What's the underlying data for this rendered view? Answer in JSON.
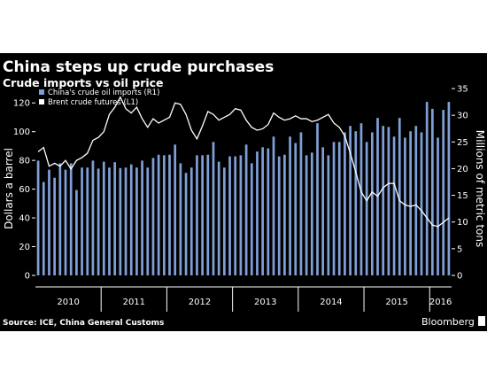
{
  "chart_data": {
    "type": "bar",
    "title": "China steps up crude purchases",
    "subtitle": "Crude imports vs oil price",
    "ylabel_left": "Dollars a barrel",
    "ylabel_right": "Millions of metric tons",
    "left_axis": {
      "ylim": [
        0,
        130
      ],
      "ticks": [
        0,
        20,
        40,
        60,
        80,
        100,
        120
      ]
    },
    "right_axis": {
      "ylim": [
        0,
        35
      ],
      "ticks": [
        0,
        5,
        10,
        15,
        20,
        25,
        30,
        35
      ]
    },
    "x_labels": [
      "2010",
      "2011",
      "2012",
      "2013",
      "2014",
      "2015",
      "2016"
    ],
    "x_range": [
      "2010-01",
      "2016-04"
    ],
    "grid": false,
    "legend_position": "top-left",
    "series": [
      {
        "name": "China's crude oil imports (R1)",
        "type": "bar",
        "axis": "right",
        "color": "#7f9fd6",
        "x": [
          "2010-01",
          "2010-02",
          "2010-03",
          "2010-04",
          "2010-05",
          "2010-06",
          "2010-07",
          "2010-08",
          "2010-09",
          "2010-10",
          "2010-11",
          "2010-12",
          "2011-01",
          "2011-02",
          "2011-03",
          "2011-04",
          "2011-05",
          "2011-06",
          "2011-07",
          "2011-08",
          "2011-09",
          "2011-10",
          "2011-11",
          "2011-12",
          "2012-01",
          "2012-02",
          "2012-03",
          "2012-04",
          "2012-05",
          "2012-06",
          "2012-07",
          "2012-08",
          "2012-09",
          "2012-10",
          "2012-11",
          "2012-12",
          "2013-01",
          "2013-02",
          "2013-03",
          "2013-04",
          "2013-05",
          "2013-06",
          "2013-07",
          "2013-08",
          "2013-09",
          "2013-10",
          "2013-11",
          "2013-12",
          "2014-01",
          "2014-02",
          "2014-03",
          "2014-04",
          "2014-05",
          "2014-06",
          "2014-07",
          "2014-08",
          "2014-09",
          "2014-10",
          "2014-11",
          "2014-12",
          "2015-01",
          "2015-02",
          "2015-03",
          "2015-04",
          "2015-05",
          "2015-06",
          "2015-07",
          "2015-08",
          "2015-09",
          "2015-10",
          "2015-11",
          "2015-12",
          "2016-01",
          "2016-02",
          "2016-03",
          "2016-04"
        ],
        "values": [
          21.5,
          17.5,
          19.8,
          18.3,
          21.0,
          19.8,
          21.0,
          16.0,
          20.2,
          20.2,
          21.5,
          20.0,
          21.3,
          20.2,
          21.2,
          20.1,
          20.2,
          20.8,
          20.2,
          21.5,
          20.2,
          22.0,
          22.6,
          22.5,
          22.6,
          24.5,
          21.0,
          19.2,
          20.2,
          22.5,
          22.5,
          22.6,
          25.0,
          21.3,
          20.2,
          22.3,
          22.3,
          22.5,
          24.5,
          21.0,
          23.2,
          24.0,
          23.8,
          26.0,
          22.3,
          22.6,
          26.0,
          24.8,
          26.8,
          22.5,
          23.0,
          28.5,
          24.0,
          22.5,
          25.0,
          25.0,
          26.8,
          28.0,
          27.0,
          28.5,
          25.0,
          26.8,
          29.5,
          28.0,
          27.8,
          26.0,
          29.5,
          25.8,
          27.0,
          28.0,
          26.8,
          32.5,
          31.2,
          25.8,
          31.0,
          32.5
        ]
      },
      {
        "name": "Brent crude futures (L1)",
        "type": "line",
        "axis": "left",
        "color": "#ffffff",
        "x": [
          "2010-01",
          "2010-02",
          "2010-03",
          "2010-04",
          "2010-05",
          "2010-06",
          "2010-07",
          "2010-08",
          "2010-09",
          "2010-10",
          "2010-11",
          "2010-12",
          "2011-01",
          "2011-02",
          "2011-03",
          "2011-04",
          "2011-05",
          "2011-06",
          "2011-07",
          "2011-08",
          "2011-09",
          "2011-10",
          "2011-11",
          "2011-12",
          "2012-01",
          "2012-02",
          "2012-03",
          "2012-04",
          "2012-05",
          "2012-06",
          "2012-07",
          "2012-08",
          "2012-09",
          "2012-10",
          "2012-11",
          "2012-12",
          "2013-01",
          "2013-02",
          "2013-03",
          "2013-04",
          "2013-05",
          "2013-06",
          "2013-07",
          "2013-08",
          "2013-09",
          "2013-10",
          "2013-11",
          "2013-12",
          "2014-01",
          "2014-02",
          "2014-03",
          "2014-04",
          "2014-05",
          "2014-06",
          "2014-07",
          "2014-08",
          "2014-09",
          "2014-10",
          "2014-11",
          "2014-12",
          "2015-01",
          "2015-02",
          "2015-03",
          "2015-04",
          "2015-05",
          "2015-06",
          "2015-07",
          "2015-08",
          "2015-09",
          "2015-10",
          "2015-11",
          "2015-12",
          "2016-01",
          "2016-02",
          "2016-03",
          "2016-04"
        ],
        "values": [
          86,
          89,
          76,
          78,
          76,
          80,
          74,
          80,
          82,
          85,
          94,
          96,
          100,
          112,
          117,
          124,
          116,
          113,
          117,
          109,
          103,
          109,
          106,
          108,
          110,
          120,
          119,
          112,
          101,
          95,
          104,
          114,
          112,
          108,
          110,
          112,
          116,
          115,
          108,
          103,
          101,
          102,
          105,
          113,
          110,
          108,
          109,
          111,
          109,
          109,
          107,
          108,
          110,
          112,
          106,
          103,
          97,
          85,
          72,
          58,
          52,
          58,
          55,
          61,
          64,
          64,
          52,
          49,
          48,
          49,
          45,
          40,
          35,
          34,
          37,
          40
        ]
      }
    ]
  },
  "source": "Source: ICE, China General Customs",
  "brand": "Bloomberg",
  "colors": {
    "background": "#000000",
    "bar": "#7f9fd6",
    "line": "#ffffff"
  }
}
